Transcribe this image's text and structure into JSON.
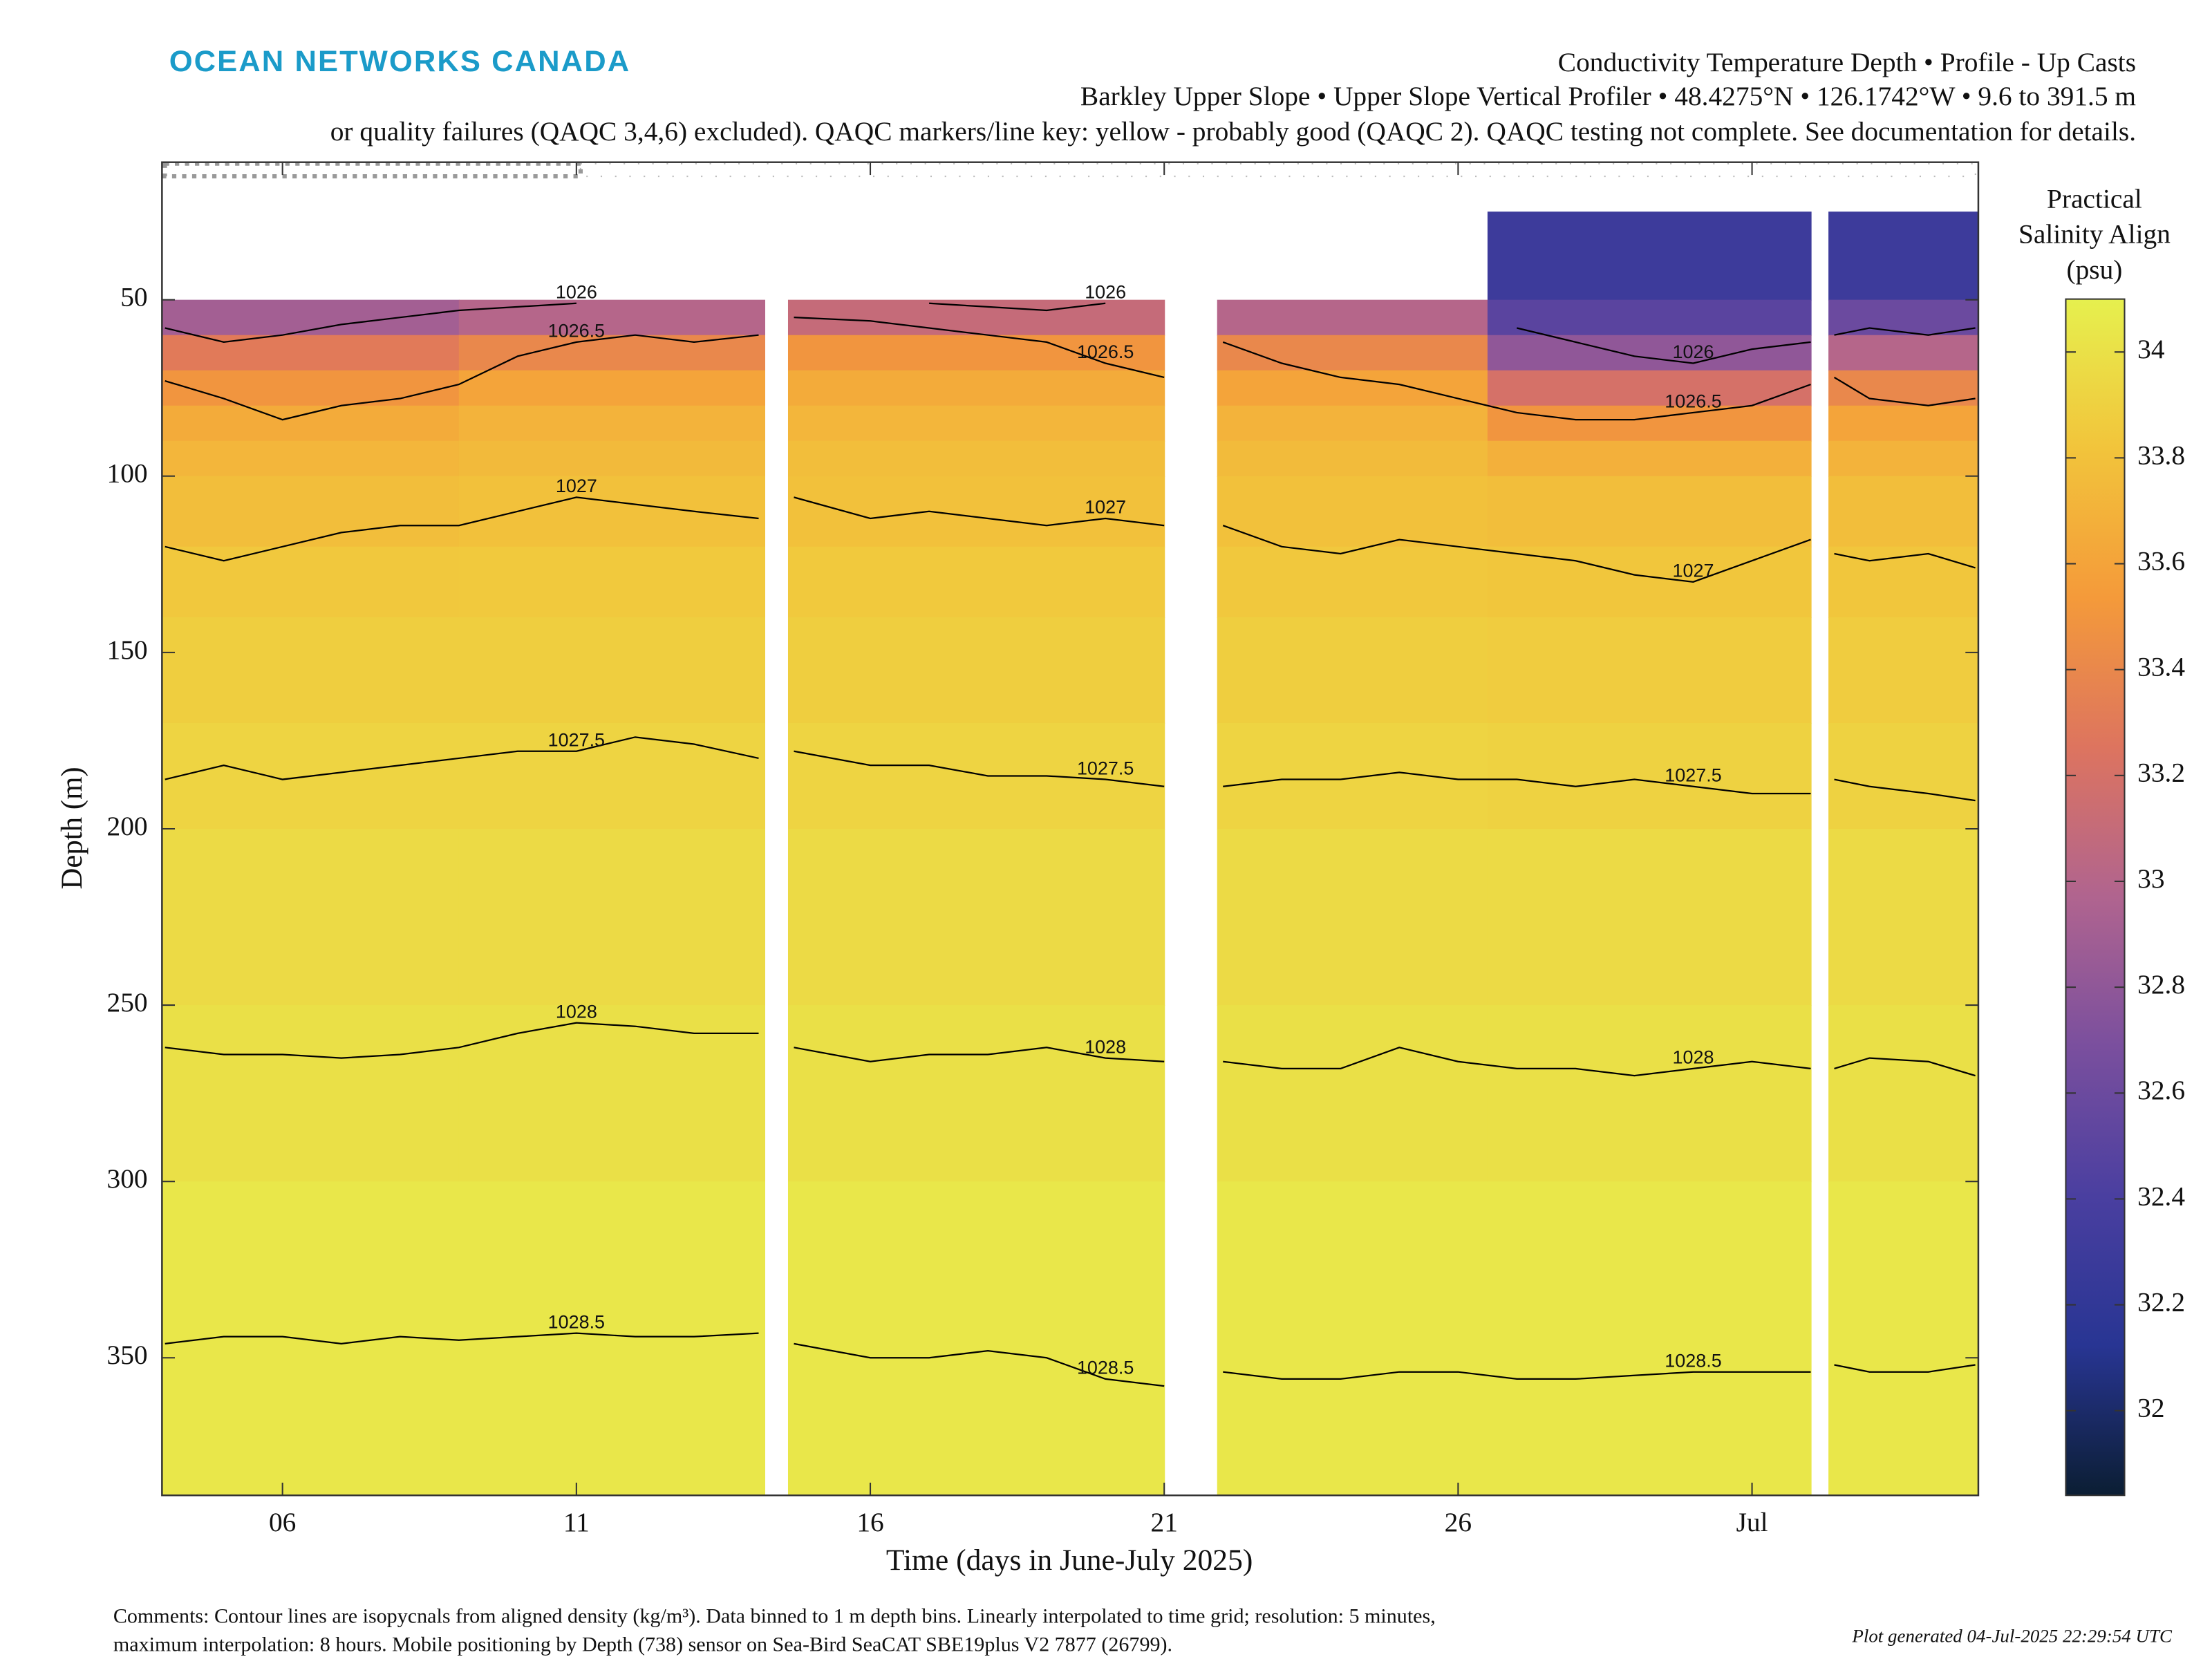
{
  "chart_data": {
    "type": "heatmap",
    "brand": "OCEAN NETWORKS CANADA",
    "title_lines": [
      "Conductivity Temperature Depth • Profile - Up Casts",
      "Barkley Upper Slope • Upper Slope Vertical Profiler • 48.4275°N • 126.1742°W • 9.6 to 391.5 m",
      "or quality failures (QAQC 3,4,6) excluded). QAQC markers/line key: yellow - probably good (QAQC 2). QAQC testing not complete. See documentation for details."
    ],
    "xlabel": "Time (days in June-July 2025)",
    "ylabel": "Depth (m)",
    "colorbar_label_lines": [
      "Practical",
      "Salinity Align",
      "(psu)"
    ],
    "xlim": [
      3.95,
      34.85
    ],
    "xticks": [
      {
        "value": 6,
        "label": "06"
      },
      {
        "value": 11,
        "label": "11"
      },
      {
        "value": 16,
        "label": "16"
      },
      {
        "value": 21,
        "label": "21"
      },
      {
        "value": 26,
        "label": "26"
      },
      {
        "value": 31,
        "label": "Jul"
      }
    ],
    "ylim": [
      11,
      389
    ],
    "y_reversed": true,
    "yticks": [
      50,
      100,
      150,
      200,
      250,
      300,
      350
    ],
    "clim": [
      31.84,
      34.1
    ],
    "cticks": [
      32,
      32.2,
      32.4,
      32.6,
      32.8,
      33,
      33.2,
      33.4,
      33.6,
      33.8,
      34
    ],
    "colormap": [
      "#0b1e33",
      "#283593",
      "#4a3fa0",
      "#7a4f9e",
      "#b0648f",
      "#dd745f",
      "#f49a3a",
      "#f2c43b",
      "#e6f04e"
    ],
    "x_edges": [
      3.95,
      9,
      14.2,
      14.6,
      21.0,
      21.9,
      26.5,
      32.0,
      32.3,
      34.85
    ],
    "depth_edges": [
      11,
      25,
      50,
      60,
      70,
      80,
      90,
      100,
      120,
      140,
      170,
      200,
      250,
      300,
      389
    ],
    "values": [
      [
        null,
        null,
        null,
        null,
        null,
        null,
        null,
        null,
        null
      ],
      [
        null,
        null,
        null,
        null,
        null,
        null,
        32.3,
        null,
        32.3
      ],
      [
        32.9,
        33.0,
        null,
        33.1,
        null,
        33.0,
        32.5,
        null,
        32.6
      ],
      [
        33.3,
        33.4,
        null,
        33.5,
        null,
        33.4,
        32.8,
        null,
        33.0
      ],
      [
        33.5,
        33.6,
        null,
        33.65,
        null,
        33.6,
        33.2,
        null,
        33.4
      ],
      [
        33.65,
        33.7,
        null,
        33.72,
        null,
        33.7,
        33.5,
        null,
        33.6
      ],
      [
        33.72,
        33.75,
        null,
        33.78,
        null,
        33.76,
        33.68,
        null,
        33.7
      ],
      [
        33.78,
        33.8,
        null,
        33.8,
        null,
        33.8,
        33.78,
        null,
        33.78
      ],
      [
        33.84,
        33.85,
        null,
        33.85,
        null,
        33.84,
        33.83,
        null,
        33.83
      ],
      [
        33.88,
        33.88,
        null,
        33.88,
        null,
        33.88,
        33.87,
        null,
        33.87
      ],
      [
        33.92,
        33.92,
        null,
        33.92,
        null,
        33.92,
        33.91,
        null,
        33.91
      ],
      [
        33.96,
        33.96,
        null,
        33.96,
        null,
        33.96,
        33.96,
        null,
        33.96
      ],
      [
        34.0,
        34.0,
        null,
        34.0,
        null,
        34.0,
        34.0,
        null,
        34.0
      ],
      [
        34.04,
        34.04,
        null,
        34.04,
        null,
        34.04,
        34.04,
        null,
        34.04
      ]
    ],
    "contour_x": [
      4,
      5,
      6,
      7,
      8,
      9,
      10,
      11,
      12,
      13,
      14.1,
      14.4,
      14.7,
      16,
      17,
      18,
      19,
      20,
      21,
      21.5,
      22,
      23,
      24,
      25,
      26,
      27,
      28,
      29,
      30,
      31,
      32,
      32.15,
      32.4,
      33,
      34,
      34.8
    ],
    "contours": [
      {
        "level": 1026,
        "depths": [
          58,
          62,
          60,
          57,
          55,
          53,
          52,
          51,
          null,
          null,
          null,
          null,
          null,
          null,
          51,
          52,
          53,
          51,
          null,
          null,
          null,
          null,
          null,
          null,
          null,
          58,
          62,
          66,
          68,
          64,
          62,
          null,
          60,
          58,
          60,
          58
        ]
      },
      {
        "level": 1026.5,
        "depths": [
          73,
          78,
          84,
          80,
          78,
          74,
          66,
          62,
          60,
          62,
          60,
          null,
          55,
          56,
          58,
          60,
          62,
          68,
          72,
          null,
          62,
          68,
          72,
          74,
          78,
          82,
          84,
          84,
          82,
          80,
          74,
          null,
          72,
          78,
          80,
          78
        ]
      },
      {
        "level": 1027,
        "depths": [
          120,
          124,
          120,
          116,
          114,
          114,
          110,
          106,
          108,
          110,
          112,
          null,
          106,
          112,
          110,
          112,
          114,
          112,
          114,
          null,
          114,
          120,
          122,
          118,
          120,
          122,
          124,
          128,
          130,
          124,
          118,
          null,
          122,
          124,
          122,
          126
        ]
      },
      {
        "level": 1027.5,
        "depths": [
          186,
          182,
          186,
          184,
          182,
          180,
          178,
          178,
          174,
          176,
          180,
          null,
          178,
          182,
          182,
          185,
          185,
          186,
          188,
          null,
          188,
          186,
          186,
          184,
          186,
          186,
          188,
          186,
          188,
          190,
          190,
          null,
          186,
          188,
          190,
          192
        ]
      },
      {
        "level": 1028,
        "depths": [
          262,
          264,
          264,
          265,
          264,
          262,
          258,
          255,
          256,
          258,
          258,
          null,
          262,
          266,
          264,
          264,
          262,
          265,
          266,
          null,
          266,
          268,
          268,
          262,
          266,
          268,
          268,
          270,
          268,
          266,
          268,
          null,
          268,
          265,
          266,
          270
        ]
      },
      {
        "level": 1028.5,
        "depths": [
          346,
          344,
          344,
          346,
          344,
          345,
          344,
          343,
          344,
          344,
          343,
          null,
          346,
          350,
          350,
          348,
          350,
          356,
          358,
          null,
          354,
          356,
          356,
          354,
          354,
          356,
          356,
          355,
          354,
          354,
          354,
          null,
          352,
          354,
          354,
          352
        ]
      }
    ],
    "contour_color": "#000000",
    "comments_lines": [
      "Comments: Contour lines are isopycnals from aligned density (kg/m³). Data binned to 1 m depth bins. Linearly interpolated to time grid; resolution: 5 minutes,",
      "maximum interpolation: 8 hours. Mobile positioning by Depth (738) sensor on Sea-Bird SeaCAT SBE19plus V2 7877 (26799)."
    ],
    "generated": "Plot generated 04-Jul-2025 22:29:54 UTC"
  }
}
